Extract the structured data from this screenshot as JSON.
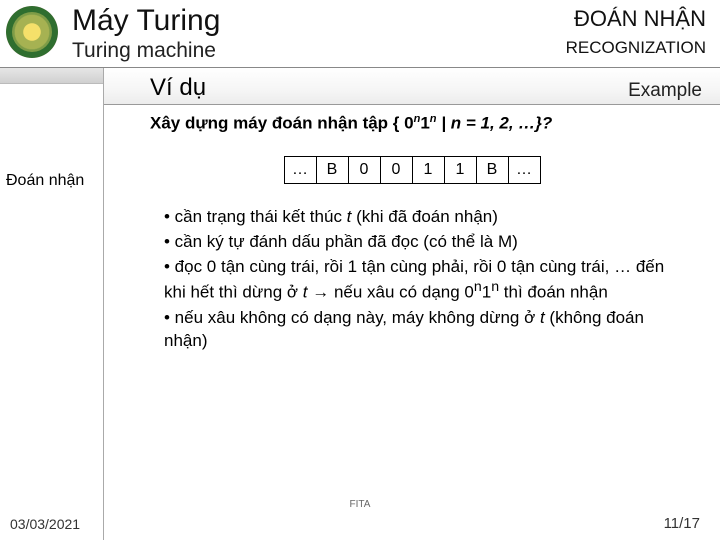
{
  "header": {
    "title_vi": "Máy Turing",
    "title_en": "Turing machine",
    "right_vi": "ĐOÁN NHẬN",
    "right_en": "RECOGNIZATION"
  },
  "sidebar": {
    "label": "Đoán nhận"
  },
  "section": {
    "heading_vi": "Ví dụ",
    "heading_en": "Example",
    "question_prefix": "Xây dựng máy đoán nhận tập { 0",
    "question_mid": "1",
    "question_cond": " | n = 1, 2, …}?",
    "exp_n": "n"
  },
  "tape": {
    "cells": [
      "…",
      "B",
      "0",
      "0",
      "1",
      "1",
      "B",
      "…"
    ]
  },
  "bullets": {
    "b1_pre": "• cần trạng thái kết thúc ",
    "b1_t": "t",
    "b1_post": " (khi đã đoán nhận)",
    "b2": "• cần ký tự đánh dấu phần đã đọc (có thể là M)",
    "b3_pre": "• đọc 0 tận cùng trái, rồi 1 tận cùng phải, rồi 0 tận cùng trái, … đến khi hết thì dừng ở ",
    "b3_t": "t",
    "b3_post": " → nếu xâu có dạng 0",
    "b3_mid": "1",
    "b3_end": " thì đoán nhận",
    "b4_pre": "• nếu xâu không có dạng này, máy không dừng ở ",
    "b4_t": "t",
    "b4_post": " (không đoán nhận)"
  },
  "footer": {
    "center": "FITA",
    "date": "03/03/2021",
    "page": "11/17"
  },
  "colors": {
    "border": "#000000",
    "text": "#000000",
    "divider": "#999999"
  }
}
